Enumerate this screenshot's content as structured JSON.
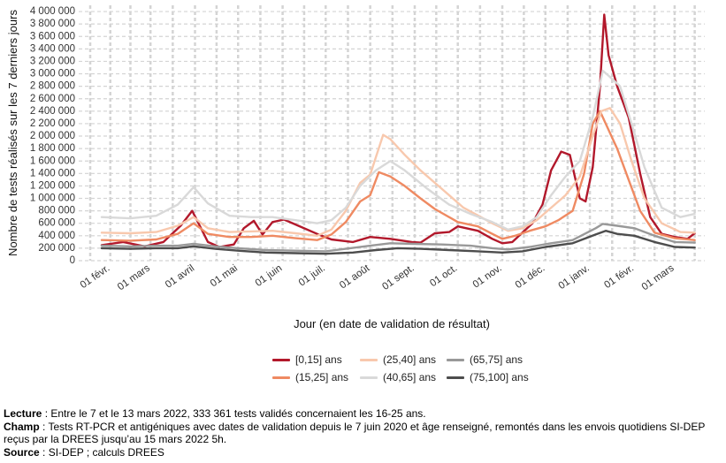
{
  "chart_data": {
    "type": "line",
    "ylabel": "Nombre de tests réalisés sur les 7 derniers jours",
    "xlabel": "Jour (en date de validation de résultat)",
    "ylim": [
      0,
      4100000
    ],
    "xlim": [
      "2021-01-10",
      "2022-03-22"
    ],
    "y_ticks": [
      0,
      200000,
      400000,
      600000,
      800000,
      1000000,
      1200000,
      1400000,
      1600000,
      1800000,
      2000000,
      2200000,
      2400000,
      2600000,
      2800000,
      3000000,
      3200000,
      3400000,
      3600000,
      3800000,
      4000000
    ],
    "y_tick_labels": [
      "0",
      "200 000",
      "400 000",
      "600 000",
      "800 000",
      "1 000 000",
      "1 200 000",
      "1 400 000",
      "1 600 000",
      "1 800 000",
      "2 000 000",
      "2 200 000",
      "2 400 000",
      "2 600 000",
      "2 800 000",
      "3 000 000",
      "3 200 000",
      "3 400 000",
      "3 600 000",
      "3 800 000",
      "4 000 000"
    ],
    "x_ticks": [
      "2021-02-01",
      "2021-03-01",
      "2021-04-01",
      "2021-05-01",
      "2021-06-01",
      "2021-07-01",
      "2021-08-01",
      "2021-09-01",
      "2021-10-01",
      "2021-11-01",
      "2021-12-01",
      "2022-01-01",
      "2022-02-01",
      "2022-03-01"
    ],
    "x_tick_labels": [
      "01 févr.",
      "01 mars",
      "01 avril",
      "01 mai",
      "01 juin",
      "01 juil.",
      "01 août",
      "01 sept.",
      "01 oct.",
      "01 nov.",
      "01 déc.",
      "01 janv.",
      "01 févr.",
      "01 mars"
    ],
    "grid": true,
    "legend_position": "bottom",
    "series": [
      {
        "name": "[0,15] ans",
        "color": "#b2182b",
        "points": [
          [
            "2021-01-26",
            250000
          ],
          [
            "2021-02-10",
            300000
          ],
          [
            "2021-02-25",
            230000
          ],
          [
            "2021-03-10",
            300000
          ],
          [
            "2021-03-22",
            560000
          ],
          [
            "2021-03-30",
            800000
          ],
          [
            "2021-04-03",
            620000
          ],
          [
            "2021-04-10",
            300000
          ],
          [
            "2021-04-18",
            220000
          ],
          [
            "2021-04-28",
            260000
          ],
          [
            "2021-05-05",
            520000
          ],
          [
            "2021-05-12",
            640000
          ],
          [
            "2021-05-18",
            420000
          ],
          [
            "2021-05-25",
            620000
          ],
          [
            "2021-06-02",
            660000
          ],
          [
            "2021-06-12",
            560000
          ],
          [
            "2021-06-25",
            430000
          ],
          [
            "2021-07-05",
            340000
          ],
          [
            "2021-07-20",
            300000
          ],
          [
            "2021-08-01",
            380000
          ],
          [
            "2021-08-15",
            350000
          ],
          [
            "2021-08-30",
            300000
          ],
          [
            "2021-09-05",
            290000
          ],
          [
            "2021-09-15",
            440000
          ],
          [
            "2021-09-25",
            460000
          ],
          [
            "2021-10-01",
            550000
          ],
          [
            "2021-10-15",
            480000
          ],
          [
            "2021-10-25",
            350000
          ],
          [
            "2021-11-01",
            280000
          ],
          [
            "2021-11-08",
            300000
          ],
          [
            "2021-11-15",
            450000
          ],
          [
            "2021-11-22",
            600000
          ],
          [
            "2021-11-29",
            900000
          ],
          [
            "2021-12-05",
            1450000
          ],
          [
            "2021-12-12",
            1750000
          ],
          [
            "2021-12-18",
            1700000
          ],
          [
            "2021-12-25",
            1000000
          ],
          [
            "2021-12-29",
            950000
          ],
          [
            "2022-01-03",
            1500000
          ],
          [
            "2022-01-08",
            2800000
          ],
          [
            "2022-01-11",
            3950000
          ],
          [
            "2022-01-14",
            3300000
          ],
          [
            "2022-01-20",
            2800000
          ],
          [
            "2022-01-28",
            2300000
          ],
          [
            "2022-02-05",
            1400000
          ],
          [
            "2022-02-12",
            700000
          ],
          [
            "2022-02-20",
            430000
          ],
          [
            "2022-03-01",
            380000
          ],
          [
            "2022-03-10",
            350000
          ],
          [
            "2022-03-15",
            440000
          ]
        ]
      },
      {
        "name": "(15,25] ans",
        "color": "#ef8a62",
        "points": [
          [
            "2021-01-26",
            330000
          ],
          [
            "2021-02-15",
            320000
          ],
          [
            "2021-03-05",
            340000
          ],
          [
            "2021-03-20",
            430000
          ],
          [
            "2021-03-31",
            600000
          ],
          [
            "2021-04-10",
            430000
          ],
          [
            "2021-04-25",
            380000
          ],
          [
            "2021-05-10",
            380000
          ],
          [
            "2021-05-25",
            400000
          ],
          [
            "2021-06-10",
            360000
          ],
          [
            "2021-06-25",
            330000
          ],
          [
            "2021-07-05",
            420000
          ],
          [
            "2021-07-15",
            620000
          ],
          [
            "2021-07-25",
            950000
          ],
          [
            "2021-08-01",
            1050000
          ],
          [
            "2021-08-07",
            1420000
          ],
          [
            "2021-08-15",
            1350000
          ],
          [
            "2021-08-25",
            1200000
          ],
          [
            "2021-09-05",
            1000000
          ],
          [
            "2021-09-15",
            830000
          ],
          [
            "2021-10-01",
            620000
          ],
          [
            "2021-10-15",
            550000
          ],
          [
            "2021-10-25",
            430000
          ],
          [
            "2021-11-01",
            350000
          ],
          [
            "2021-11-10",
            400000
          ],
          [
            "2021-11-20",
            480000
          ],
          [
            "2021-12-01",
            550000
          ],
          [
            "2021-12-10",
            650000
          ],
          [
            "2021-12-20",
            800000
          ],
          [
            "2021-12-28",
            1400000
          ],
          [
            "2022-01-03",
            2200000
          ],
          [
            "2022-01-08",
            2400000
          ],
          [
            "2022-01-14",
            2100000
          ],
          [
            "2022-01-20",
            1800000
          ],
          [
            "2022-01-28",
            1300000
          ],
          [
            "2022-02-05",
            800000
          ],
          [
            "2022-02-15",
            450000
          ],
          [
            "2022-03-01",
            360000
          ],
          [
            "2022-03-15",
            330000
          ]
        ]
      },
      {
        "name": "(25,40] ans",
        "color": "#f8c8ad",
        "points": [
          [
            "2021-01-26",
            450000
          ],
          [
            "2021-02-15",
            440000
          ],
          [
            "2021-03-05",
            460000
          ],
          [
            "2021-03-20",
            560000
          ],
          [
            "2021-03-31",
            700000
          ],
          [
            "2021-04-10",
            520000
          ],
          [
            "2021-04-25",
            460000
          ],
          [
            "2021-05-10",
            470000
          ],
          [
            "2021-05-25",
            480000
          ],
          [
            "2021-06-10",
            440000
          ],
          [
            "2021-06-25",
            400000
          ],
          [
            "2021-07-05",
            500000
          ],
          [
            "2021-07-15",
            800000
          ],
          [
            "2021-07-25",
            1250000
          ],
          [
            "2021-08-01",
            1380000
          ],
          [
            "2021-08-10",
            2020000
          ],
          [
            "2021-08-15",
            1950000
          ],
          [
            "2021-08-25",
            1700000
          ],
          [
            "2021-09-05",
            1450000
          ],
          [
            "2021-09-20",
            1150000
          ],
          [
            "2021-10-05",
            850000
          ],
          [
            "2021-10-25",
            600000
          ],
          [
            "2021-11-05",
            480000
          ],
          [
            "2021-11-15",
            520000
          ],
          [
            "2021-11-25",
            650000
          ],
          [
            "2021-12-05",
            850000
          ],
          [
            "2021-12-15",
            1050000
          ],
          [
            "2021-12-25",
            1350000
          ],
          [
            "2022-01-03",
            2000000
          ],
          [
            "2022-01-09",
            2400000
          ],
          [
            "2022-01-15",
            2450000
          ],
          [
            "2022-01-22",
            2200000
          ],
          [
            "2022-01-30",
            1600000
          ],
          [
            "2022-02-08",
            1000000
          ],
          [
            "2022-02-20",
            600000
          ],
          [
            "2022-03-05",
            460000
          ],
          [
            "2022-03-15",
            450000
          ]
        ]
      },
      {
        "name": "(40,65] ans",
        "color": "#d9d9d9",
        "points": [
          [
            "2021-01-26",
            700000
          ],
          [
            "2021-02-15",
            680000
          ],
          [
            "2021-03-05",
            720000
          ],
          [
            "2021-03-20",
            900000
          ],
          [
            "2021-03-31",
            1180000
          ],
          [
            "2021-04-10",
            920000
          ],
          [
            "2021-04-25",
            720000
          ],
          [
            "2021-05-10",
            700000
          ],
          [
            "2021-05-25",
            700000
          ],
          [
            "2021-06-10",
            650000
          ],
          [
            "2021-06-25",
            600000
          ],
          [
            "2021-07-05",
            650000
          ],
          [
            "2021-07-15",
            850000
          ],
          [
            "2021-07-25",
            1200000
          ],
          [
            "2021-08-05",
            1450000
          ],
          [
            "2021-08-15",
            1600000
          ],
          [
            "2021-08-25",
            1450000
          ],
          [
            "2021-09-10",
            1150000
          ],
          [
            "2021-09-25",
            900000
          ],
          [
            "2021-10-10",
            750000
          ],
          [
            "2021-10-25",
            620000
          ],
          [
            "2021-11-05",
            500000
          ],
          [
            "2021-11-15",
            550000
          ],
          [
            "2021-11-25",
            700000
          ],
          [
            "2021-12-05",
            1050000
          ],
          [
            "2021-12-15",
            1350000
          ],
          [
            "2021-12-25",
            1600000
          ],
          [
            "2022-01-03",
            2300000
          ],
          [
            "2022-01-10",
            3050000
          ],
          [
            "2022-01-15",
            2950000
          ],
          [
            "2022-01-22",
            2800000
          ],
          [
            "2022-01-30",
            2200000
          ],
          [
            "2022-02-08",
            1500000
          ],
          [
            "2022-02-20",
            850000
          ],
          [
            "2022-03-05",
            700000
          ],
          [
            "2022-03-15",
            750000
          ]
        ]
      },
      {
        "name": "(65,75] ans",
        "color": "#999999",
        "points": [
          [
            "2021-01-26",
            240000
          ],
          [
            "2021-02-15",
            230000
          ],
          [
            "2021-03-05",
            240000
          ],
          [
            "2021-03-20",
            240000
          ],
          [
            "2021-03-31",
            270000
          ],
          [
            "2021-04-15",
            230000
          ],
          [
            "2021-05-01",
            200000
          ],
          [
            "2021-05-20",
            170000
          ],
          [
            "2021-06-10",
            160000
          ],
          [
            "2021-07-01",
            150000
          ],
          [
            "2021-07-15",
            190000
          ],
          [
            "2021-08-01",
            240000
          ],
          [
            "2021-08-15",
            280000
          ],
          [
            "2021-09-01",
            270000
          ],
          [
            "2021-09-20",
            260000
          ],
          [
            "2021-10-10",
            240000
          ],
          [
            "2021-10-25",
            200000
          ],
          [
            "2021-11-05",
            180000
          ],
          [
            "2021-11-20",
            220000
          ],
          [
            "2021-12-05",
            280000
          ],
          [
            "2021-12-20",
            330000
          ],
          [
            "2022-01-05",
            520000
          ],
          [
            "2022-01-10",
            590000
          ],
          [
            "2022-01-20",
            560000
          ],
          [
            "2022-02-01",
            520000
          ],
          [
            "2022-02-15",
            400000
          ],
          [
            "2022-03-01",
            300000
          ],
          [
            "2022-03-15",
            290000
          ]
        ]
      },
      {
        "name": "(75,100] ans",
        "color": "#4d4d4d",
        "points": [
          [
            "2021-01-26",
            200000
          ],
          [
            "2021-02-15",
            190000
          ],
          [
            "2021-03-05",
            200000
          ],
          [
            "2021-03-20",
            200000
          ],
          [
            "2021-03-31",
            230000
          ],
          [
            "2021-04-15",
            190000
          ],
          [
            "2021-05-01",
            160000
          ],
          [
            "2021-05-20",
            130000
          ],
          [
            "2021-06-10",
            120000
          ],
          [
            "2021-07-01",
            110000
          ],
          [
            "2021-07-20",
            130000
          ],
          [
            "2021-08-05",
            170000
          ],
          [
            "2021-08-20",
            200000
          ],
          [
            "2021-09-05",
            190000
          ],
          [
            "2021-09-25",
            170000
          ],
          [
            "2021-10-15",
            150000
          ],
          [
            "2021-11-01",
            130000
          ],
          [
            "2021-11-15",
            150000
          ],
          [
            "2021-12-01",
            220000
          ],
          [
            "2021-12-20",
            280000
          ],
          [
            "2022-01-05",
            420000
          ],
          [
            "2022-01-12",
            480000
          ],
          [
            "2022-01-20",
            430000
          ],
          [
            "2022-02-01",
            400000
          ],
          [
            "2022-02-15",
            300000
          ],
          [
            "2022-03-01",
            220000
          ],
          [
            "2022-03-15",
            210000
          ]
        ]
      }
    ]
  },
  "notes": [
    {
      "label": "Lecture",
      "text": " : Entre le 7 et le 13 mars 2022, 333 361 tests validés concernaient les 16-25 ans."
    },
    {
      "label": "Champ",
      "text": " : Tests RT-PCR et antigéniques avec dates de validation depuis le 7 juin 2020 et âge renseigné, remontés dans les envois quotidiens SI-DEP reçus par la DREES jusqu’au 15 mars 2022 5h."
    },
    {
      "label": "Source",
      "text": " : SI-DEP ; calculs DREES"
    }
  ]
}
